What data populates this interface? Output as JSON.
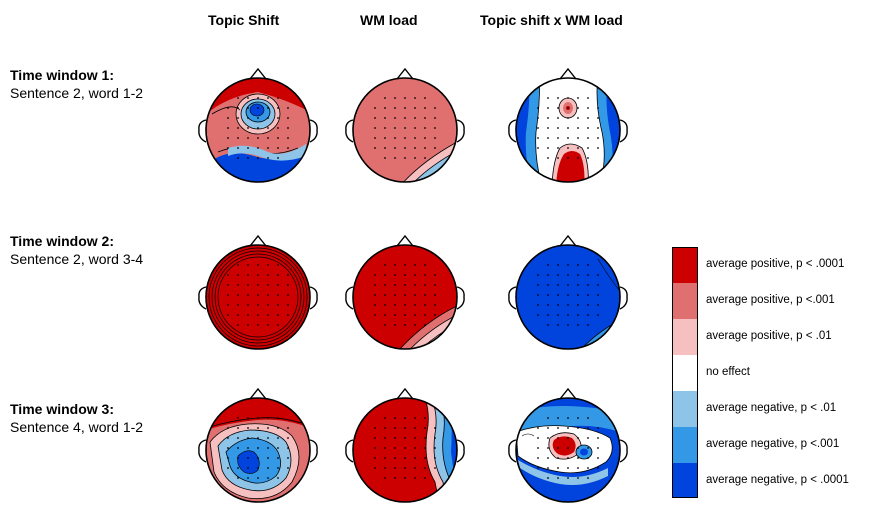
{
  "columns": [
    "Topic Shift",
    "WM load",
    "Topic shift x WM load"
  ],
  "rows": [
    {
      "title": "Time window 1:",
      "subtitle": "Sentence 2, word 1-2"
    },
    {
      "title": "Time window 2:",
      "subtitle": "Sentence 2, word 3-4"
    },
    {
      "title": "Time window 3:",
      "subtitle": "Sentence 4, word 1-2"
    }
  ],
  "legend": [
    {
      "label": "average positive, p < .0001",
      "color": "#cc0000"
    },
    {
      "label": "average positive, p <.001",
      "color": "#e07070"
    },
    {
      "label": "average positive, p < .01",
      "color": "#f7c0c0"
    },
    {
      "label": "no effect",
      "color": "#ffffff"
    },
    {
      "label": "average negative, p < .01",
      "color": "#8ec4e8"
    },
    {
      "label": "average negative, p <.001",
      "color": "#3399e6"
    },
    {
      "label": "average negative, p < .0001",
      "color": "#0044dd"
    }
  ]
}
